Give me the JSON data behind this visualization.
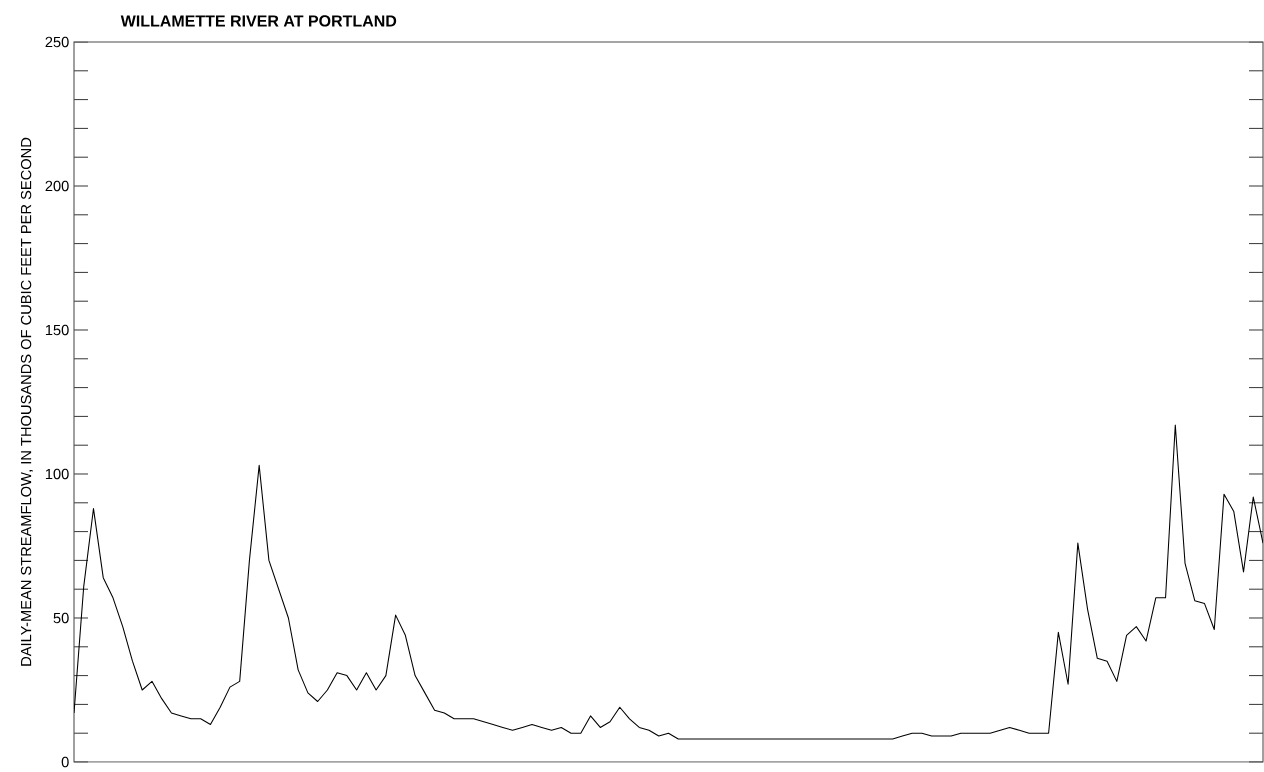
{
  "chart_data": {
    "type": "line",
    "title": "WILLAMETTE RIVER AT PORTLAND",
    "ylabel": "DAILY-MEAN STREAMFLOW, IN THOUSANDS OF CUBIC FEET PER SECOND",
    "categories": [
      null,
      null,
      null,
      null,
      null,
      null,
      null,
      null,
      null,
      null,
      null,
      null,
      null,
      null,
      null,
      null,
      null,
      null,
      null,
      null,
      null,
      null,
      null,
      null,
      null,
      null,
      null,
      null,
      null,
      null,
      null,
      null,
      null,
      null,
      null,
      null,
      null,
      null,
      null,
      null,
      null,
      null,
      null,
      null,
      null,
      null,
      null,
      null,
      null,
      null,
      null,
      null,
      null,
      null,
      null,
      null,
      null,
      null,
      null,
      null,
      null,
      null,
      null,
      null,
      null,
      null,
      null,
      null,
      null,
      null,
      null,
      null,
      null,
      null,
      null,
      null,
      null,
      null,
      null,
      null,
      null,
      null,
      null,
      null,
      null,
      null,
      null,
      null,
      null,
      null,
      null,
      null,
      null,
      null,
      null,
      null,
      null,
      null,
      null,
      null,
      null,
      null,
      null,
      null,
      null,
      null,
      null,
      null,
      null,
      null,
      null,
      null,
      null,
      null,
      null,
      null,
      null,
      null,
      null,
      null,
      null,
      null,
      null
    ],
    "series": [
      {
        "color": "#000000",
        "line_style": "solid",
        "values": [
          17,
          61,
          88,
          64,
          57,
          47,
          35,
          25,
          28,
          22,
          17,
          16,
          15,
          15,
          13,
          19,
          26,
          28,
          70,
          103,
          70,
          60,
          50,
          32,
          24,
          21,
          25,
          31,
          30,
          25,
          31,
          25,
          30,
          51,
          44,
          30,
          24,
          18,
          17,
          15,
          15,
          15,
          14,
          13,
          12,
          11,
          12,
          13,
          12,
          11,
          12,
          10,
          10,
          16,
          12,
          14,
          19,
          15,
          12,
          11,
          9,
          10,
          8,
          8,
          8,
          8,
          8,
          8,
          8,
          8,
          8,
          8,
          8,
          8,
          8,
          8,
          8,
          8,
          8,
          8,
          8,
          8,
          8,
          8,
          8,
          9,
          10,
          10,
          9,
          9,
          9,
          10,
          10,
          10,
          10,
          11,
          12,
          11,
          10,
          10,
          10,
          45,
          27,
          76,
          53,
          36,
          35,
          28,
          44,
          47,
          42,
          57,
          57,
          117,
          69,
          56,
          55,
          46,
          93,
          87,
          66,
          92,
          76
        ]
      }
    ],
    "ylim": [
      0,
      250
    ],
    "yticks": [
      0,
      {
        "value": 10,
        "label": null
      },
      {
        "value": 20,
        "label": null
      },
      {
        "value": 30,
        "label": null
      },
      {
        "value": 40,
        "label": null
      },
      50,
      {
        "value": 60,
        "label": null
      },
      {
        "value": 70,
        "label": null
      },
      {
        "value": 80,
        "label": null
      },
      {
        "value": 90,
        "label": null
      },
      100,
      {
        "value": 110,
        "label": null
      },
      {
        "value": 120,
        "label": null
      },
      {
        "value": 130,
        "label": null
      },
      {
        "value": 140,
        "label": null
      },
      150,
      {
        "value": 160,
        "label": null
      },
      {
        "value": 170,
        "label": null
      },
      {
        "value": 180,
        "label": null
      },
      {
        "value": 190,
        "label": null
      },
      200,
      {
        "value": 210,
        "label": null
      },
      {
        "value": 220,
        "label": null
      },
      {
        "value": 230,
        "label": null
      },
      {
        "value": 240,
        "label": null
      },
      250
    ],
    "tick_labels": "y"
  }
}
